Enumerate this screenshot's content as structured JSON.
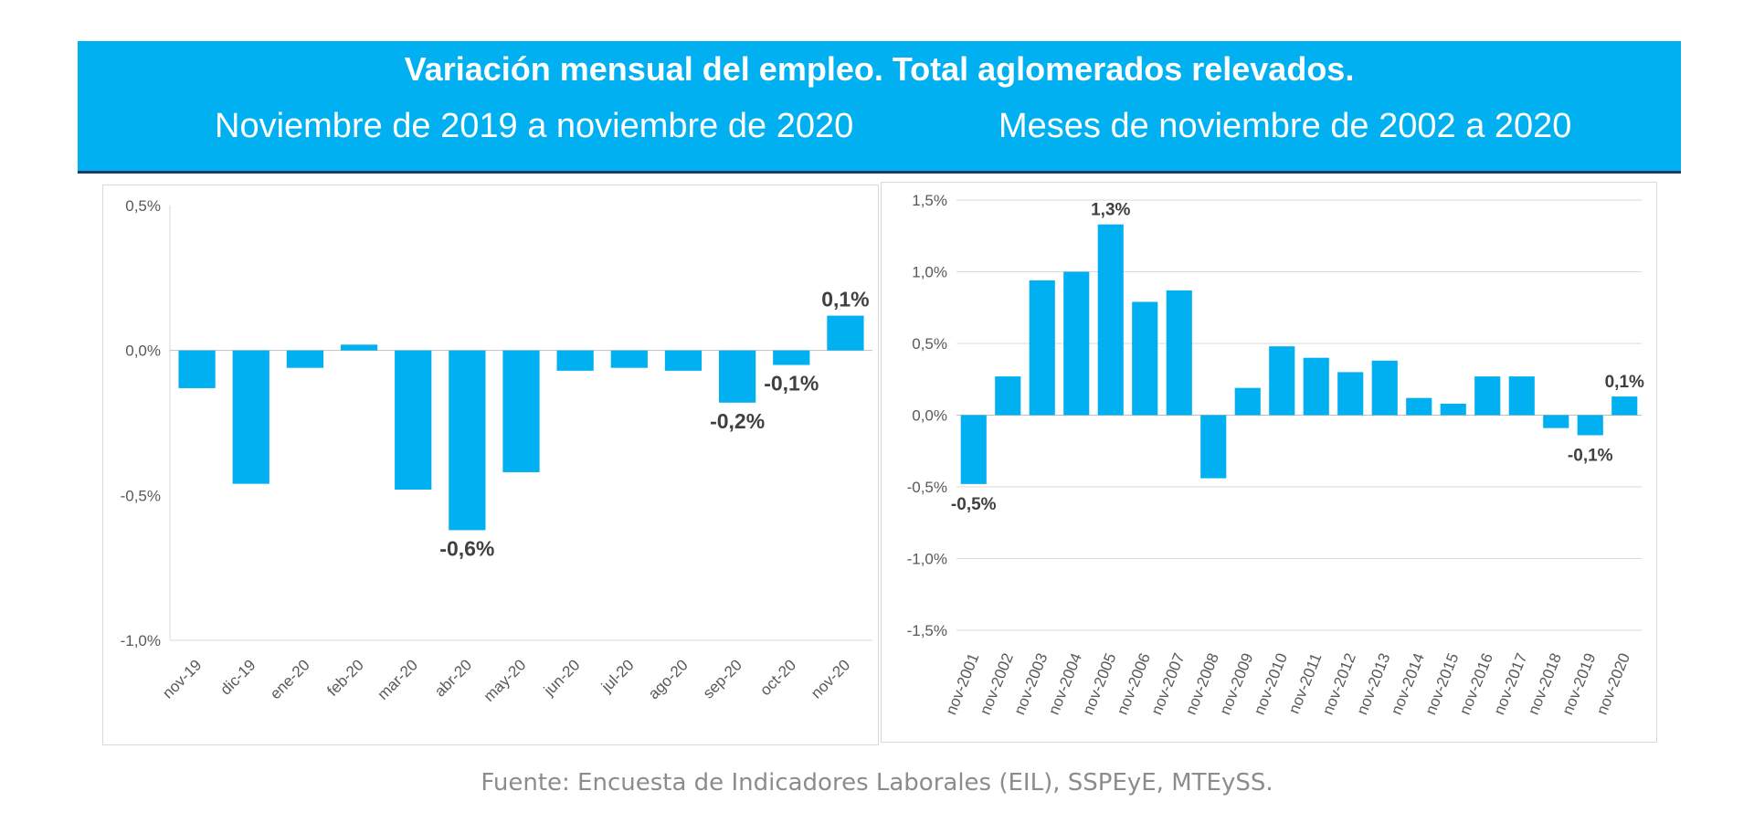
{
  "header": {
    "title": "Variación mensual del empleo. Total aglomerados relevados.",
    "subtitle_left": "Noviembre de 2019 a noviembre de 2020",
    "subtitle_right": "Meses de noviembre de 2002 a 2020"
  },
  "source": "Fuente: Encuesta de Indicadores Laborales (EIL), SSPEyE, MTEySS.",
  "colors": {
    "bar": "#00b0f0",
    "header_bg": "#00b0f0",
    "header_rule": "#1f3864"
  },
  "chart_data": [
    {
      "type": "bar",
      "categories": [
        "nov-19",
        "dic-19",
        "ene-20",
        "feb-20",
        "mar-20",
        "abr-20",
        "may-20",
        "jun-20",
        "jul-20",
        "ago-20",
        "sep-20",
        "oct-20",
        "nov-20"
      ],
      "values": [
        -0.13,
        -0.46,
        -0.06,
        0.02,
        -0.48,
        -0.62,
        -0.42,
        -0.07,
        -0.06,
        -0.07,
        -0.18,
        -0.05,
        0.12
      ],
      "ylim": [
        -1.0,
        0.5
      ],
      "yticks": [
        "0,5%",
        "0,0%",
        "-0,5%",
        "-1,0%"
      ],
      "grid": false,
      "data_labels": [
        {
          "index": 5,
          "text": "-0,6%"
        },
        {
          "index": 10,
          "text": "-0,2%"
        },
        {
          "index": 11,
          "text": "-0,1%"
        },
        {
          "index": 12,
          "text": "0,1%"
        }
      ]
    },
    {
      "type": "bar",
      "categories": [
        "nov-2001",
        "nov-2002",
        "nov-2003",
        "nov-2004",
        "nov-2005",
        "nov-2006",
        "nov-2007",
        "nov-2008",
        "nov-2009",
        "nov-2010",
        "nov-2011",
        "nov-2012",
        "nov-2013",
        "nov-2014",
        "nov-2015",
        "nov-2016",
        "nov-2017",
        "nov-2018",
        "nov-2019",
        "nov-2020"
      ],
      "values": [
        -0.48,
        0.27,
        0.94,
        1.0,
        1.33,
        0.79,
        0.87,
        -0.44,
        0.19,
        0.48,
        0.4,
        0.3,
        0.38,
        0.12,
        0.08,
        0.27,
        0.27,
        -0.09,
        -0.14,
        0.13
      ],
      "ylim": [
        -1.5,
        1.5
      ],
      "yticks": [
        "1,5%",
        "1,0%",
        "0,5%",
        "0,0%",
        "-0,5%",
        "-1,0%",
        "-1,5%"
      ],
      "grid": true,
      "data_labels": [
        {
          "index": 0,
          "text": "-0,5%"
        },
        {
          "index": 4,
          "text": "1,3%"
        },
        {
          "index": 18,
          "text": "-0,1%"
        },
        {
          "index": 19,
          "text": "0,1%"
        }
      ]
    }
  ]
}
